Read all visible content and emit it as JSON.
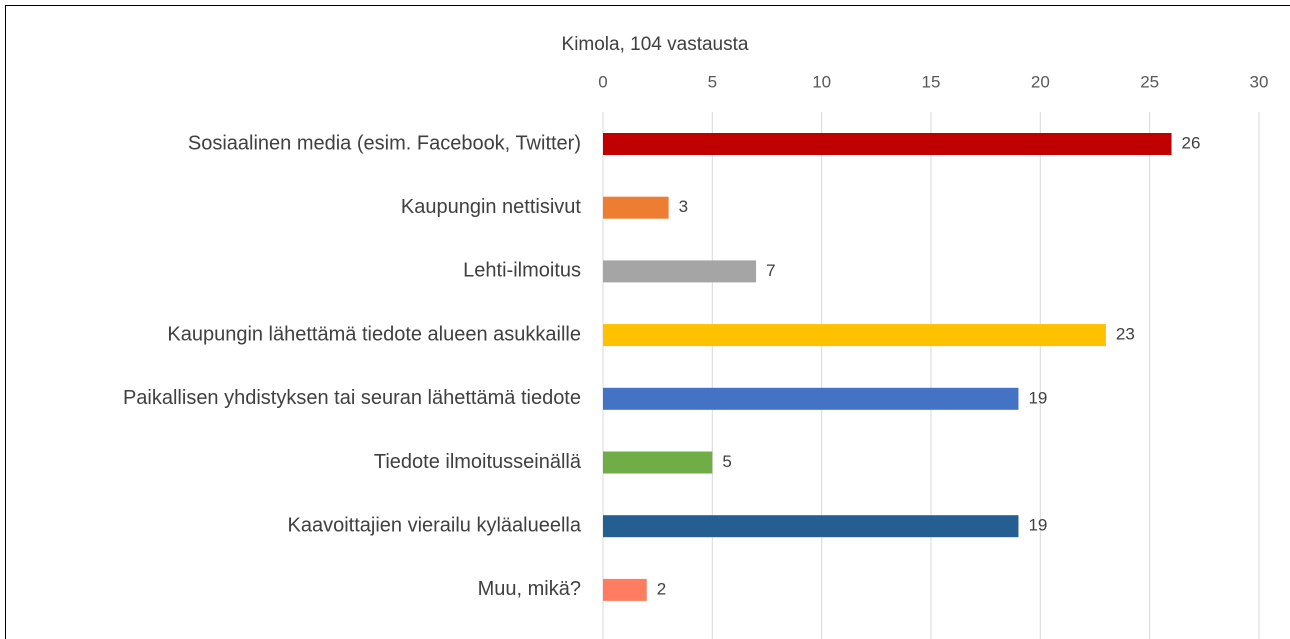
{
  "chart_data": {
    "type": "bar",
    "orientation": "horizontal",
    "title": "Kimola, 104 vastausta",
    "categories": [
      "Sosiaalinen media (esim. Facebook, Twitter)",
      "Kaupungin nettisivut",
      "Lehti-ilmoitus",
      "Kaupungin lähettämä tiedote alueen asukkaille",
      "Paikallisen yhdistyksen tai seuran lähettämä tiedote",
      "Tiedote ilmoitusseinällä",
      "Kaavoittajien vierailu kyläalueella",
      "Muu, mikä?"
    ],
    "values": [
      26,
      3,
      7,
      23,
      19,
      5,
      19,
      2
    ],
    "colors": [
      "#c00000",
      "#ed7d31",
      "#a5a5a5",
      "#ffc000",
      "#4472c4",
      "#70ad47",
      "#255e91",
      "#ff7c60"
    ],
    "xlim": [
      0,
      30
    ],
    "xticks": [
      0,
      5,
      10,
      15,
      20,
      25,
      30
    ],
    "grid": true,
    "data_labels": true
  }
}
